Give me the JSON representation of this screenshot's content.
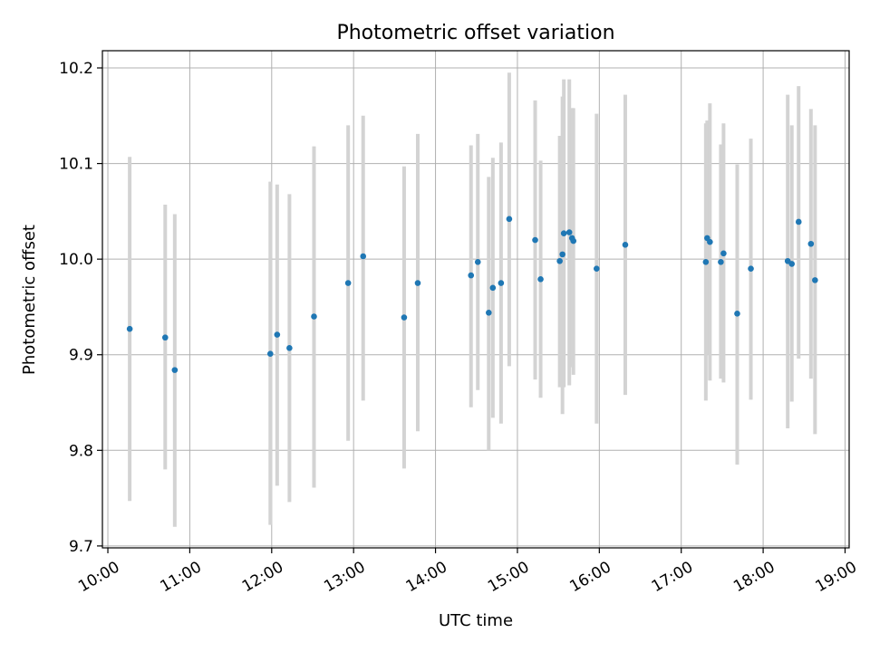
{
  "chart_data": {
    "type": "scatter",
    "title": "Photometric offset variation",
    "xlabel": "UTC time",
    "ylabel": "Photometric offset",
    "xlim": [
      "09:56",
      "19:03"
    ],
    "ylim": [
      9.698,
      10.218
    ],
    "grid": true,
    "x_ticks": [
      "10:00",
      "11:00",
      "12:00",
      "13:00",
      "14:00",
      "15:00",
      "16:00",
      "17:00",
      "18:00",
      "19:00"
    ],
    "y_ticks": [
      "9.7",
      "9.8",
      "9.9",
      "10.0",
      "10.1",
      "10.2"
    ],
    "colors": {
      "point": "#1f77b4",
      "errorbar": "#d3d3d3",
      "grid": "#b0b0b0"
    },
    "points": [
      {
        "x": "10:16",
        "y": 9.927,
        "err_low": 9.747,
        "err_high": 10.107
      },
      {
        "x": "10:42",
        "y": 9.918,
        "err_low": 9.78,
        "err_high": 10.057
      },
      {
        "x": "10:49",
        "y": 9.884,
        "err_low": 9.72,
        "err_high": 10.047
      },
      {
        "x": "11:59",
        "y": 9.901,
        "err_low": 9.722,
        "err_high": 10.081
      },
      {
        "x": "12:04",
        "y": 9.921,
        "err_low": 9.763,
        "err_high": 10.078
      },
      {
        "x": "12:13",
        "y": 9.907,
        "err_low": 9.746,
        "err_high": 10.068
      },
      {
        "x": "12:31",
        "y": 9.94,
        "err_low": 9.761,
        "err_high": 10.118
      },
      {
        "x": "12:56",
        "y": 9.975,
        "err_low": 9.81,
        "err_high": 10.14
      },
      {
        "x": "13:07",
        "y": 10.003,
        "err_low": 9.852,
        "err_high": 10.15
      },
      {
        "x": "13:37",
        "y": 9.939,
        "err_low": 9.781,
        "err_high": 10.097
      },
      {
        "x": "13:47",
        "y": 9.975,
        "err_low": 9.82,
        "err_high": 10.131
      },
      {
        "x": "14:26",
        "y": 9.983,
        "err_low": 9.845,
        "err_high": 10.119
      },
      {
        "x": "14:31",
        "y": 9.997,
        "err_low": 9.863,
        "err_high": 10.131
      },
      {
        "x": "14:39",
        "y": 9.944,
        "err_low": 9.8,
        "err_high": 10.086
      },
      {
        "x": "14:42",
        "y": 9.97,
        "err_low": 9.834,
        "err_high": 10.106
      },
      {
        "x": "14:48",
        "y": 9.975,
        "err_low": 9.828,
        "err_high": 10.122
      },
      {
        "x": "14:54",
        "y": 10.042,
        "err_low": 9.888,
        "err_high": 10.195
      },
      {
        "x": "15:13",
        "y": 10.02,
        "err_low": 9.874,
        "err_high": 10.166
      },
      {
        "x": "15:17",
        "y": 9.979,
        "err_low": 9.855,
        "err_high": 10.103
      },
      {
        "x": "15:31",
        "y": 9.998,
        "err_low": 9.866,
        "err_high": 10.129
      },
      {
        "x": "15:33",
        "y": 10.005,
        "err_low": 9.838,
        "err_high": 10.17
      },
      {
        "x": "15:34",
        "y": 10.027,
        "err_low": 9.866,
        "err_high": 10.188
      },
      {
        "x": "15:38",
        "y": 10.028,
        "err_low": 9.868,
        "err_high": 10.188
      },
      {
        "x": "15:40",
        "y": 10.022,
        "err_low": 9.887,
        "err_high": 10.158
      },
      {
        "x": "15:41",
        "y": 10.019,
        "err_low": 9.879,
        "err_high": 10.158
      },
      {
        "x": "15:58",
        "y": 9.99,
        "err_low": 9.828,
        "err_high": 10.152
      },
      {
        "x": "16:19",
        "y": 10.015,
        "err_low": 9.858,
        "err_high": 10.172
      },
      {
        "x": "17:18",
        "y": 9.997,
        "err_low": 9.852,
        "err_high": 10.142
      },
      {
        "x": "17:19",
        "y": 10.022,
        "err_low": 9.9,
        "err_high": 10.145
      },
      {
        "x": "17:21",
        "y": 10.018,
        "err_low": 9.873,
        "err_high": 10.163
      },
      {
        "x": "17:29",
        "y": 9.997,
        "err_low": 9.875,
        "err_high": 10.12
      },
      {
        "x": "17:31",
        "y": 10.006,
        "err_low": 9.871,
        "err_high": 10.142
      },
      {
        "x": "17:41",
        "y": 9.943,
        "err_low": 9.785,
        "err_high": 10.099
      },
      {
        "x": "17:51",
        "y": 9.99,
        "err_low": 9.853,
        "err_high": 10.126
      },
      {
        "x": "18:18",
        "y": 9.998,
        "err_low": 9.823,
        "err_high": 10.172
      },
      {
        "x": "18:21",
        "y": 9.995,
        "err_low": 9.851,
        "err_high": 10.14
      },
      {
        "x": "18:26",
        "y": 10.039,
        "err_low": 9.896,
        "err_high": 10.181
      },
      {
        "x": "18:35",
        "y": 10.016,
        "err_low": 9.875,
        "err_high": 10.157
      },
      {
        "x": "18:38",
        "y": 9.978,
        "err_low": 9.817,
        "err_high": 10.14
      }
    ]
  }
}
